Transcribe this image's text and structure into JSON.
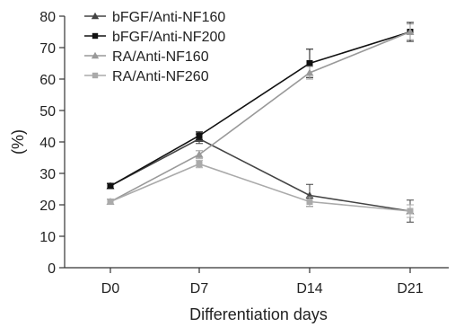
{
  "chart_data": {
    "type": "line",
    "title": "",
    "xlabel": "Differentiation days",
    "ylabel": "(%)",
    "categories": [
      "D0",
      "D7",
      "D14",
      "D21"
    ],
    "ylim": [
      0,
      80
    ],
    "yticks": [
      0,
      10,
      20,
      30,
      40,
      50,
      60,
      70,
      80
    ],
    "grid": false,
    "legend_position": "top-left",
    "series": [
      {
        "name": "bFGF/Anti-NF160",
        "values": [
          26,
          41,
          23,
          18
        ],
        "errors": [
          0.8,
          1.5,
          3.5,
          3.5
        ],
        "color": "#444444",
        "marker": "triangle"
      },
      {
        "name": "bFGF/Anti-NF200",
        "values": [
          26,
          42,
          65,
          75
        ],
        "errors": [
          0.8,
          1.2,
          4.5,
          3.0
        ],
        "color": "#111111",
        "marker": "square"
      },
      {
        "name": "RA/Anti-NF160",
        "values": [
          21,
          36,
          62,
          75
        ],
        "errors": [
          0.8,
          1.2,
          2.0,
          2.5
        ],
        "color": "#999999",
        "marker": "triangle"
      },
      {
        "name": "RA/Anti-NF260",
        "values": [
          21,
          33,
          21,
          18
        ],
        "errors": [
          0.8,
          1.2,
          1.5,
          2.0
        ],
        "color": "#aaaaaa",
        "marker": "square"
      }
    ]
  }
}
